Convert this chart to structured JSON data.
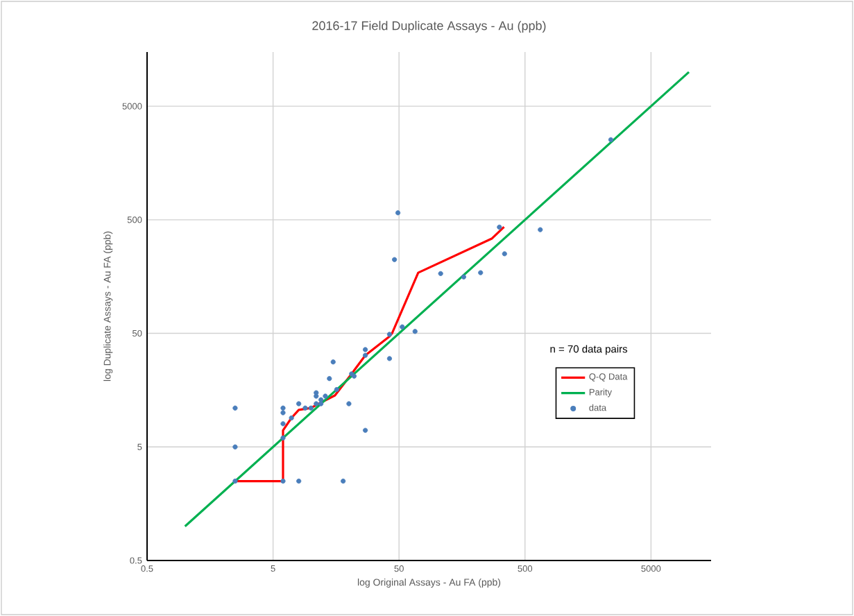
{
  "chart_data": {
    "type": "scatter",
    "title": "2016-17 Field Duplicate Assays - Au (ppb)",
    "xlabel": "log Original Assays - Au FA (ppb)",
    "ylabel": "log Duplicate Assays - Au FA (ppb)",
    "annotations": [
      "n = 70 data pairs"
    ],
    "log": "xy",
    "grid": true,
    "legend": "right",
    "xlim": [
      0.5,
      15000
    ],
    "ylim": [
      0.5,
      15000
    ],
    "xticks": [
      0.5,
      5,
      50,
      500,
      5000
    ],
    "yticks": [
      0.5,
      5,
      50,
      500,
      5000
    ],
    "series": [
      {
        "name": "Q-Q Data",
        "type": "line",
        "color": "#ff0000",
        "x": [
          2.5,
          6,
          6,
          7,
          8,
          10,
          12,
          15.5,
          21,
          27,
          42,
          44,
          71,
          272,
          341
        ],
        "values": [
          2.5,
          2.5,
          7,
          9,
          10.6,
          11,
          12.3,
          14.2,
          22,
          32,
          47,
          50,
          171,
          341,
          433
        ]
      },
      {
        "name": "Parity",
        "type": "line",
        "color": "#00b050",
        "x": [
          1,
          10000
        ],
        "values": [
          1,
          10000
        ]
      },
      {
        "name": "data",
        "color": "#4a7ebb",
        "marker": "circle",
        "x": [
          2.5,
          2.5,
          2.5,
          6,
          6,
          6,
          6,
          6,
          7,
          8,
          8,
          9,
          10,
          11,
          11,
          11,
          12,
          12,
          13,
          14,
          15,
          16,
          18,
          20,
          21,
          22,
          27,
          27,
          27,
          42,
          42,
          53,
          67,
          49,
          46,
          107,
          163,
          222,
          313,
          344,
          661,
          2400
        ],
        "values": [
          11,
          5,
          2.5,
          11,
          10,
          8,
          6,
          2.5,
          9,
          12,
          2.5,
          11,
          11,
          15,
          14,
          12,
          13,
          12,
          14,
          20,
          28,
          16,
          2.5,
          12,
          22,
          21,
          36,
          32,
          7,
          49,
          30,
          57,
          52,
          576,
          223,
          168,
          157,
          171,
          431,
          251,
          409,
          2535
        ]
      }
    ]
  }
}
